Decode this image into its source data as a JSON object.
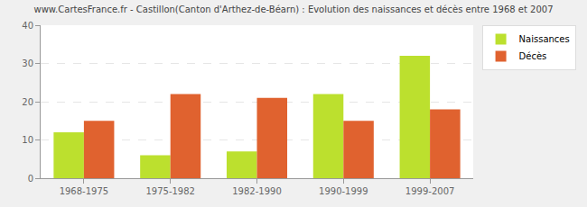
{
  "chart_data": {
    "type": "bar",
    "title": "www.CartesFrance.fr - Castillon(Canton d'Arthez-de-Béarn) : Evolution des naissances et décès entre 1968 et 2007",
    "categories": [
      "1968-1975",
      "1975-1982",
      "1982-1990",
      "1990-1999",
      "1999-2007"
    ],
    "series": [
      {
        "name": "Naissances",
        "color": "#bce02e",
        "values": [
          12,
          6,
          7,
          22,
          32
        ]
      },
      {
        "name": "Décès",
        "color": "#e0622f",
        "values": [
          15,
          22,
          21,
          15,
          18
        ]
      }
    ],
    "ylim": [
      0,
      40
    ],
    "yticks": [
      0,
      10,
      20,
      30,
      40
    ],
    "grid": true,
    "legend": "top-right"
  }
}
